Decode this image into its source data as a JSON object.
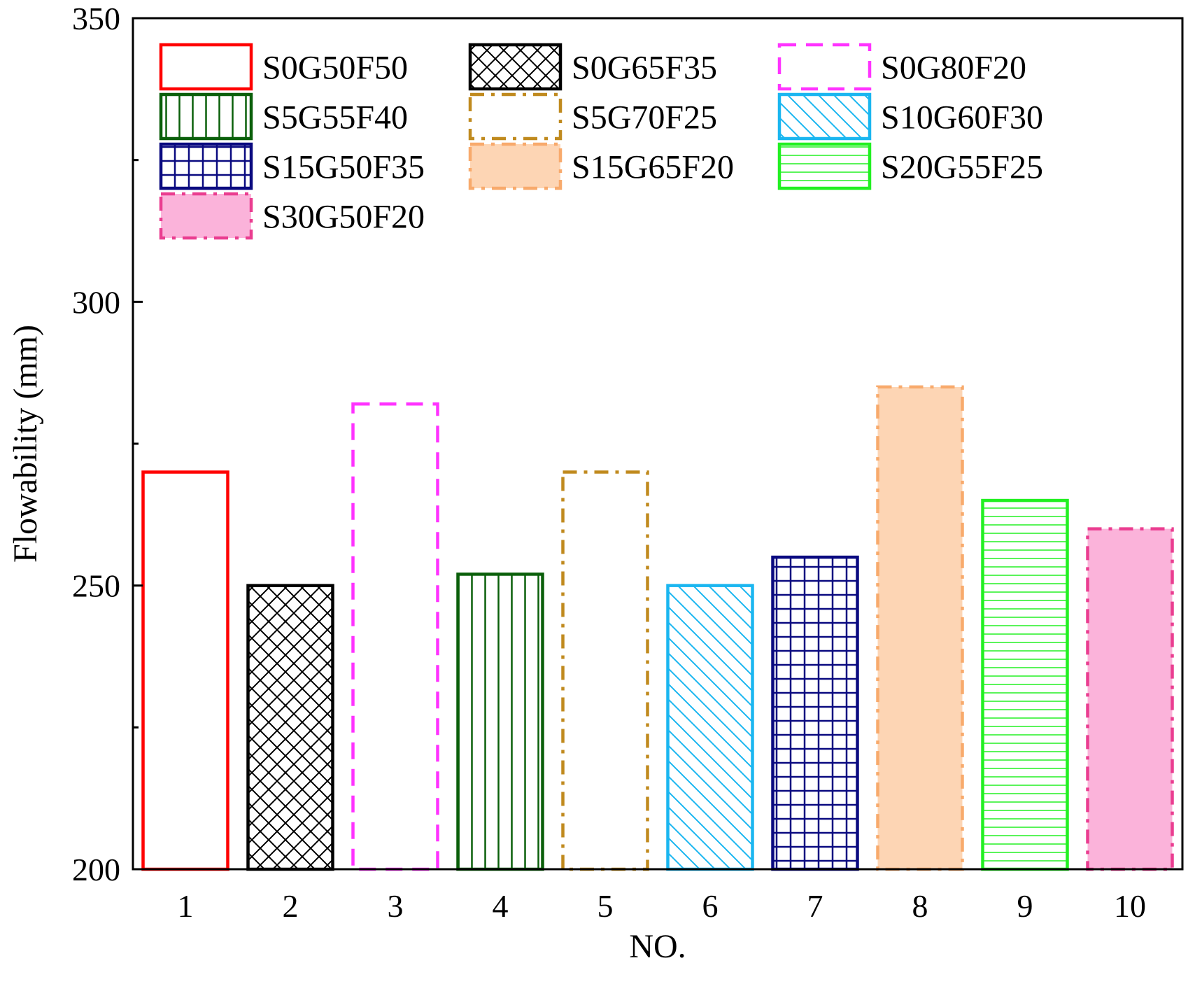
{
  "chart_data": {
    "type": "bar",
    "title": "",
    "xlabel": "NO.",
    "ylabel": "Flowability (mm)",
    "ylim": [
      200,
      350
    ],
    "yticks": [
      200,
      250,
      300,
      350
    ],
    "y_minor_ticks": [
      225,
      275,
      325
    ],
    "categories": [
      "1",
      "2",
      "3",
      "4",
      "5",
      "6",
      "7",
      "8",
      "9",
      "10"
    ],
    "values": [
      270,
      250,
      282,
      252,
      270,
      250,
      255,
      285,
      265,
      260
    ],
    "series": [
      {
        "name": "S0G50F50",
        "category": "1",
        "value": 270,
        "color": "#ff0000",
        "pattern": "none",
        "fill": "#ffffff",
        "dash": "solid"
      },
      {
        "name": "S0G65F35",
        "category": "2",
        "value": 250,
        "color": "#000000",
        "pattern": "crosshatch",
        "fill": "#ffffff",
        "dash": "solid"
      },
      {
        "name": "S0G80F20",
        "category": "3",
        "value": 282,
        "color": "#ff33ff",
        "pattern": "none",
        "fill": "#ffffff",
        "dash": "dash"
      },
      {
        "name": "S5G55F40",
        "category": "4",
        "value": 252,
        "color": "#0a5f0a",
        "pattern": "vertical",
        "fill": "#ffffff",
        "dash": "solid"
      },
      {
        "name": "S5G70F25",
        "category": "5",
        "value": 270,
        "color": "#c08a1e",
        "pattern": "none",
        "fill": "#ffffff",
        "dash": "dashdot"
      },
      {
        "name": "S10G60F30",
        "category": "6",
        "value": 250,
        "color": "#1ab6f0",
        "pattern": "diagonal",
        "fill": "#ffffff",
        "dash": "solid"
      },
      {
        "name": "S15G50F35",
        "category": "7",
        "value": 255,
        "color": "#0a0a80",
        "pattern": "grid",
        "fill": "#ffffff",
        "dash": "solid"
      },
      {
        "name": "S15G65F20",
        "category": "8",
        "value": 285,
        "color": "#f8aa6c",
        "pattern": "none",
        "fill": "#fdd5b4",
        "dash": "dashdot"
      },
      {
        "name": "S20G55F25",
        "category": "9",
        "value": 265,
        "color": "#22f022",
        "pattern": "horizontal",
        "fill": "#ffffff",
        "dash": "solid"
      },
      {
        "name": "S30G50F20",
        "category": "10",
        "value": 260,
        "color": "#ea3d90",
        "pattern": "none",
        "fill": "#fbb3da",
        "dash": "dashdot"
      }
    ],
    "legend": {
      "placement": "top-left",
      "columns": 3,
      "order": [
        "S0G50F50",
        "S0G65F35",
        "S0G80F20",
        "S5G55F40",
        "S5G70F25",
        "S10G60F30",
        "S15G50F35",
        "S15G65F20",
        "S20G55F25",
        "S30G50F20"
      ]
    },
    "grid": false
  }
}
